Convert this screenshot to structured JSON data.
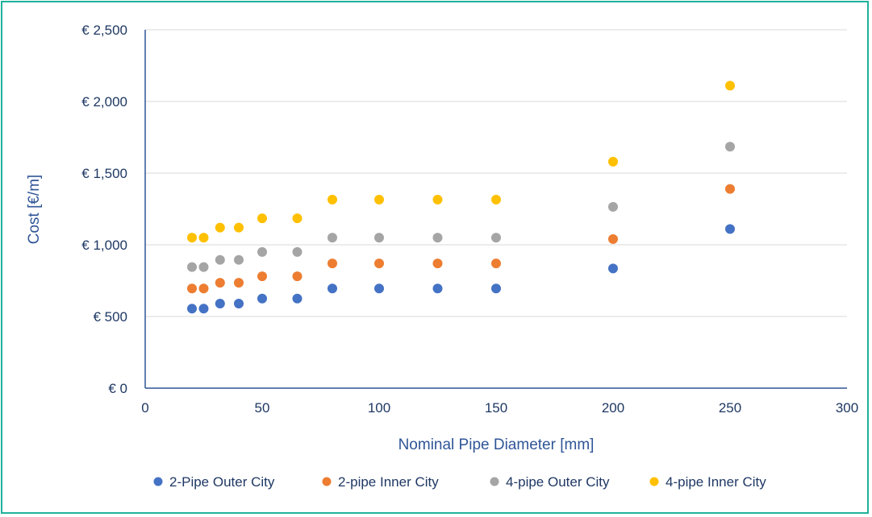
{
  "chart_data": {
    "type": "scatter",
    "title": "",
    "xlabel": "Nominal Pipe Diameter [mm]",
    "ylabel": "Cost [€/m]",
    "xlim": [
      0,
      300
    ],
    "ylim": [
      0,
      2500
    ],
    "x_ticks": [
      0,
      50,
      100,
      150,
      200,
      250,
      300
    ],
    "x_tick_labels": [
      "0",
      "50",
      "100",
      "150",
      "200",
      "250",
      "300"
    ],
    "y_ticks": [
      0,
      500,
      1000,
      1500,
      2000,
      2500
    ],
    "y_tick_labels": [
      "€ 0",
      "€ 500",
      "€ 1,000",
      "€ 1,500",
      "€ 2,000",
      "€ 2,500"
    ],
    "grid": "horizontal",
    "legend_position": "bottom",
    "x": [
      20,
      25,
      32,
      40,
      50,
      65,
      80,
      100,
      125,
      150,
      200,
      250
    ],
    "series": [
      {
        "name": "2-Pipe Outer City",
        "color": "#4472c4",
        "values": [
          555,
          555,
          590,
          590,
          625,
          625,
          695,
          695,
          695,
          695,
          835,
          1110
        ]
      },
      {
        "name": "2-pipe Inner City",
        "color": "#ed7d31",
        "values": [
          695,
          695,
          735,
          735,
          780,
          780,
          870,
          870,
          870,
          870,
          1040,
          1390
        ]
      },
      {
        "name": "4-pipe Outer City",
        "color": "#a5a5a5",
        "values": [
          845,
          845,
          895,
          895,
          950,
          950,
          1050,
          1050,
          1050,
          1050,
          1265,
          1685
        ]
      },
      {
        "name": "4-pipe Inner City",
        "color": "#ffc000",
        "values": [
          1050,
          1050,
          1120,
          1120,
          1185,
          1185,
          1315,
          1315,
          1315,
          1315,
          1580,
          2110
        ]
      }
    ]
  }
}
